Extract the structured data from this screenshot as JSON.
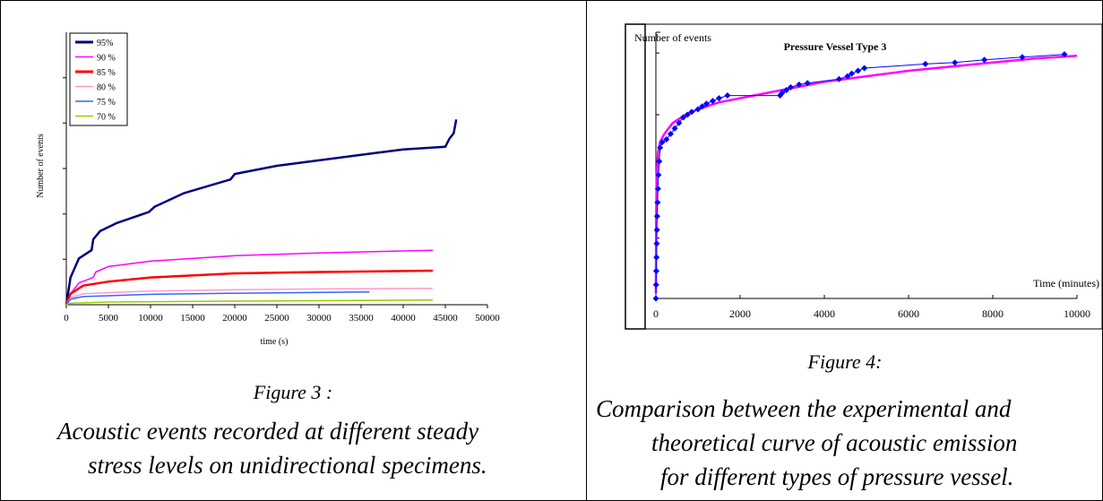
{
  "figure3": {
    "label": "Figure 3 :",
    "caption_lines": [
      "Acoustic events recorded at different steady",
      "stress levels on unidirectional specimens."
    ]
  },
  "figure4": {
    "label": "Figure 4:",
    "caption_lines": [
      "Comparison between the experimental and",
      "theoretical curve of  acoustic emission",
      "for different types of pressure vessel."
    ]
  },
  "chart_data": [
    {
      "type": "line",
      "title": "",
      "xlabel": "time (s)",
      "ylabel": "Number of events",
      "xlim": [
        0,
        50000
      ],
      "xticks": [
        0,
        5000,
        10000,
        15000,
        20000,
        25000,
        30000,
        35000,
        40000,
        45000,
        50000
      ],
      "xtick_labels": [
        "0",
        "5000",
        "10000",
        "15000",
        "20000",
        "25000",
        "30000",
        "35000",
        "40000",
        "45000",
        "50000"
      ],
      "ylim": [
        0,
        1
      ],
      "yticks": [
        0.167,
        0.333,
        0.5,
        0.667,
        0.833
      ],
      "grid": false,
      "legend": "top-left",
      "series": [
        {
          "name": "95%",
          "color": "#00007f",
          "points": [
            [
              0,
              0
            ],
            [
              500,
              0.1
            ],
            [
              1500,
              0.17
            ],
            [
              2500,
              0.19
            ],
            [
              3000,
              0.2
            ],
            [
              3200,
              0.24
            ],
            [
              4000,
              0.27
            ],
            [
              6000,
              0.3
            ],
            [
              9800,
              0.34
            ],
            [
              10500,
              0.36
            ],
            [
              14000,
              0.41
            ],
            [
              19500,
              0.46
            ],
            [
              20000,
              0.48
            ],
            [
              25000,
              0.51
            ],
            [
              30000,
              0.53
            ],
            [
              35000,
              0.55
            ],
            [
              40000,
              0.57
            ],
            [
              45000,
              0.58
            ],
            [
              45500,
              0.61
            ],
            [
              46000,
              0.63
            ],
            [
              46300,
              0.68
            ]
          ]
        },
        {
          "name": "90 %",
          "color": "#ff00ff",
          "points": [
            [
              0,
              0
            ],
            [
              500,
              0.04
            ],
            [
              1500,
              0.08
            ],
            [
              3200,
              0.1
            ],
            [
              3500,
              0.12
            ],
            [
              5000,
              0.14
            ],
            [
              10000,
              0.16
            ],
            [
              20000,
              0.18
            ],
            [
              30000,
              0.19
            ],
            [
              43500,
              0.2
            ]
          ]
        },
        {
          "name": "85 %",
          "color": "#ff0000",
          "points": [
            [
              0,
              0
            ],
            [
              500,
              0.04
            ],
            [
              2000,
              0.07
            ],
            [
              5000,
              0.085
            ],
            [
              10000,
              0.1
            ],
            [
              20000,
              0.115
            ],
            [
              30000,
              0.12
            ],
            [
              43500,
              0.125
            ]
          ]
        },
        {
          "name": "80 %",
          "color": "#ff99cc",
          "points": [
            [
              0,
              0
            ],
            [
              500,
              0.025
            ],
            [
              2000,
              0.04
            ],
            [
              10000,
              0.05
            ],
            [
              20000,
              0.055
            ],
            [
              30000,
              0.058
            ],
            [
              43500,
              0.06
            ]
          ]
        },
        {
          "name": "75 %",
          "color": "#3366ff",
          "points": [
            [
              0,
              0
            ],
            [
              500,
              0.02
            ],
            [
              2000,
              0.03
            ],
            [
              10000,
              0.038
            ],
            [
              20000,
              0.042
            ],
            [
              30000,
              0.045
            ],
            [
              36000,
              0.047
            ]
          ]
        },
        {
          "name": "70 %",
          "color": "#99cc00",
          "points": [
            [
              0,
              0
            ],
            [
              500,
              0.006
            ],
            [
              5000,
              0.01
            ],
            [
              20000,
              0.013
            ],
            [
              43500,
              0.017
            ]
          ]
        }
      ]
    },
    {
      "type": "line",
      "title": "Pressure Vessel Type 3",
      "xlabel": "Time (minutes)",
      "ylabel": "Number of events",
      "xlim": [
        0,
        10000
      ],
      "xticks": [
        0,
        2000,
        4000,
        6000,
        8000,
        10000
      ],
      "xtick_labels": [
        "0",
        "2000",
        "4000",
        "6000",
        "8000",
        "10000"
      ],
      "ylim": [
        0,
        1
      ],
      "yticks": [
        0.22,
        0.445,
        0.67,
        0.895
      ],
      "grid": false,
      "legend": "none",
      "series": [
        {
          "name": "",
          "color": "#0000ff",
          "marker": "diamond",
          "points": [
            [
              0,
              0
            ],
            [
              5,
              0.05
            ],
            [
              10,
              0.1
            ],
            [
              15,
              0.15
            ],
            [
              20,
              0.2
            ],
            [
              25,
              0.25
            ],
            [
              30,
              0.3
            ],
            [
              40,
              0.35
            ],
            [
              50,
              0.4
            ],
            [
              60,
              0.45
            ],
            [
              80,
              0.5
            ],
            [
              100,
              0.55
            ],
            [
              150,
              0.57
            ],
            [
              250,
              0.58
            ],
            [
              350,
              0.6
            ],
            [
              450,
              0.62
            ],
            [
              550,
              0.64
            ],
            [
              650,
              0.66
            ],
            [
              750,
              0.67
            ],
            [
              850,
              0.68
            ],
            [
              1000,
              0.69
            ],
            [
              1100,
              0.7
            ],
            [
              1200,
              0.71
            ],
            [
              1350,
              0.72
            ],
            [
              1500,
              0.73
            ],
            [
              1700,
              0.74
            ],
            [
              2950,
              0.74
            ],
            [
              3000,
              0.75
            ],
            [
              3100,
              0.76
            ],
            [
              3200,
              0.77
            ],
            [
              3400,
              0.78
            ],
            [
              3600,
              0.785
            ],
            [
              4350,
              0.8
            ],
            [
              4550,
              0.81
            ],
            [
              4650,
              0.82
            ],
            [
              4800,
              0.83
            ],
            [
              4950,
              0.84
            ],
            [
              6400,
              0.855
            ],
            [
              7100,
              0.86
            ],
            [
              7800,
              0.87
            ],
            [
              8700,
              0.88
            ],
            [
              9700,
              0.89
            ]
          ]
        },
        {
          "name": "",
          "color": "#ff00ff",
          "points": [
            [
              0,
              0.02
            ],
            [
              5,
              0.25
            ],
            [
              10,
              0.35
            ],
            [
              20,
              0.45
            ],
            [
              50,
              0.53
            ],
            [
              100,
              0.57
            ],
            [
              200,
              0.6
            ],
            [
              400,
              0.64
            ],
            [
              700,
              0.67
            ],
            [
              1000,
              0.69
            ],
            [
              1500,
              0.715
            ],
            [
              2000,
              0.73
            ],
            [
              3000,
              0.76
            ],
            [
              4000,
              0.79
            ],
            [
              5000,
              0.81
            ],
            [
              6000,
              0.83
            ],
            [
              7000,
              0.845
            ],
            [
              8000,
              0.86
            ],
            [
              9000,
              0.875
            ],
            [
              10000,
              0.885
            ]
          ]
        }
      ]
    }
  ]
}
